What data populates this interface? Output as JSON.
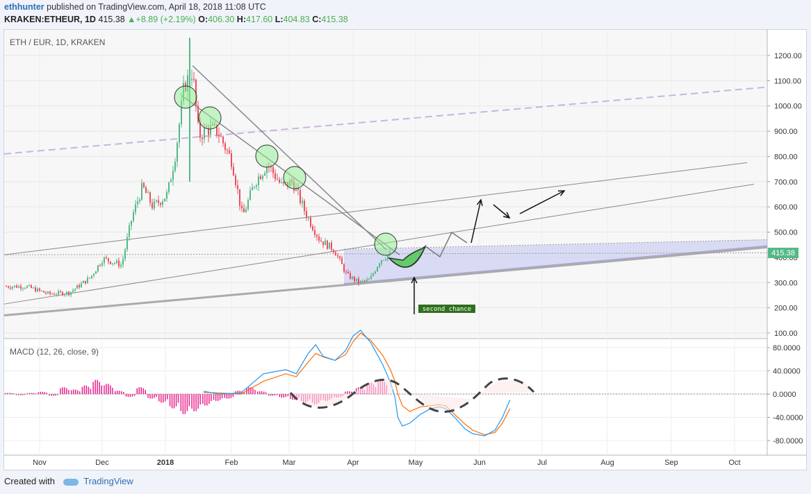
{
  "header": {
    "author": "ethhunter",
    "published_text": "published on TradingView.com, April 18, 2018 11:08 UTC"
  },
  "ticker": {
    "symbol": "KRAKEN:ETHEUR, 1D",
    "last": "415.38",
    "change": "+8.89 (+2.19%)",
    "open_label": "O:",
    "open": "406.30",
    "high_label": "H:",
    "high": "417.60",
    "low_label": "L:",
    "low": "404.83",
    "close_label": "C:",
    "close": "415.38"
  },
  "colors": {
    "up": "#53b987",
    "down": "#eb4d5c",
    "macd": "#2196f3",
    "signal": "#ff6d00",
    "histogram": "#e91e8c",
    "channel_fill": "#c9ccf2",
    "price_tag": "#53b987"
  },
  "chart_data": [
    {
      "type": "line",
      "title": "ETH / EUR, 1D, KRAKEN",
      "x": [
        "Nov",
        "Dec",
        "2018",
        "Feb",
        "Mar",
        "Apr",
        "May",
        "Jun",
        "Jul",
        "Aug",
        "Sep",
        "Oct"
      ],
      "ylim": [
        80,
        1270
      ],
      "y_ticks": [
        "1200.00",
        "1100.00",
        "1000.00",
        "900.00",
        "800.00",
        "700.00",
        "600.00",
        "500.00",
        "400.00",
        "300.00",
        "200.00",
        "100.00"
      ],
      "last_price": "415.38",
      "series": [
        {
          "values_by_month": [
            [
              "2017-10-25",
              285
            ],
            [
              "2017-11-05",
              255
            ],
            [
              "2017-11-15",
              260
            ],
            [
              "2017-11-25",
              320
            ],
            [
              "2017-12-01",
              395
            ],
            [
              "2017-12-10",
              370
            ],
            [
              "2017-12-15",
              560
            ],
            [
              "2017-12-20",
              680
            ],
            [
              "2017-12-25",
              600
            ],
            [
              "2018-01-01",
              650
            ],
            [
              "2018-01-05",
              820
            ],
            [
              "2018-01-09",
              1080
            ],
            [
              "2018-01-13",
              1140
            ],
            [
              "2018-01-16",
              880
            ],
            [
              "2018-01-20",
              910
            ],
            [
              "2018-01-25",
              900
            ],
            [
              "2018-02-01",
              780
            ],
            [
              "2018-02-06",
              560
            ],
            [
              "2018-02-12",
              700
            ],
            [
              "2018-02-18",
              770
            ],
            [
              "2018-02-25",
              680
            ],
            [
              "2018-03-02",
              700
            ],
            [
              "2018-03-08",
              580
            ],
            [
              "2018-03-15",
              470
            ],
            [
              "2018-03-22",
              430
            ],
            [
              "2018-03-28",
              330
            ],
            [
              "2018-04-03",
              300
            ],
            [
              "2018-04-08",
              310
            ],
            [
              "2018-04-13",
              390
            ],
            [
              "2018-04-18",
              415
            ]
          ]
        }
      ],
      "annotations": [
        {
          "text": "second chance"
        }
      ]
    },
    {
      "type": "line",
      "title": "MACD (12, 26, close, 9)",
      "ylim": [
        -100,
        100
      ],
      "y_ticks": [
        "80.0000",
        "40.0000",
        "0.0000",
        "-40.0000",
        "-80.0000"
      ],
      "series": [
        {
          "name": "MACD",
          "values": [
            [
              -100,
              5
            ],
            [
              -90,
              0
            ],
            [
              -75,
              2
            ],
            [
              -60,
              35
            ],
            [
              -45,
              42
            ],
            [
              -38,
              35
            ],
            [
              -30,
              70
            ],
            [
              -25,
              85
            ],
            [
              -20,
              65
            ],
            [
              -12,
              58
            ],
            [
              -5,
              75
            ],
            [
              0,
              100
            ],
            [
              5,
              110
            ],
            [
              12,
              88
            ],
            [
              20,
              50
            ],
            [
              25,
              20
            ],
            [
              28,
              -5
            ],
            [
              30,
              -40
            ],
            [
              33,
              -55
            ],
            [
              38,
              -50
            ],
            [
              45,
              -35
            ],
            [
              52,
              -25
            ],
            [
              58,
              -22
            ],
            [
              62,
              -25
            ],
            [
              68,
              -40
            ],
            [
              75,
              -60
            ],
            [
              80,
              -68
            ],
            [
              88,
              -72
            ],
            [
              95,
              -62
            ],
            [
              100,
              -40
            ],
            [
              105,
              -10
            ]
          ]
        },
        {
          "name": "Signal",
          "values": [
            [
              -100,
              3
            ],
            [
              -90,
              2
            ],
            [
              -75,
              0
            ],
            [
              -60,
              22
            ],
            [
              -45,
              35
            ],
            [
              -38,
              30
            ],
            [
              -30,
              55
            ],
            [
              -25,
              70
            ],
            [
              -20,
              64
            ],
            [
              -12,
              58
            ],
            [
              -5,
              68
            ],
            [
              0,
              90
            ],
            [
              5,
              105
            ],
            [
              12,
              92
            ],
            [
              20,
              66
            ],
            [
              25,
              42
            ],
            [
              28,
              22
            ],
            [
              30,
              0
            ],
            [
              33,
              -20
            ],
            [
              38,
              -30
            ],
            [
              45,
              -22
            ],
            [
              52,
              -20
            ],
            [
              58,
              -18
            ],
            [
              62,
              -20
            ],
            [
              68,
              -35
            ],
            [
              75,
              -52
            ],
            [
              80,
              -62
            ],
            [
              88,
              -70
            ],
            [
              95,
              -66
            ],
            [
              100,
              -50
            ],
            [
              105,
              -25
            ]
          ]
        },
        {
          "name": "Histogram",
          "values": [
            2,
            -2,
            2,
            4,
            -3,
            12,
            8,
            15,
            25,
            18,
            6,
            -5,
            12,
            -8,
            -15,
            -25,
            -35,
            -30,
            -20,
            -12,
            -8,
            6,
            12,
            5,
            -3,
            -6,
            -10,
            -15,
            -18,
            -12,
            -6,
            5,
            12,
            20,
            25
          ]
        }
      ]
    }
  ]
}
